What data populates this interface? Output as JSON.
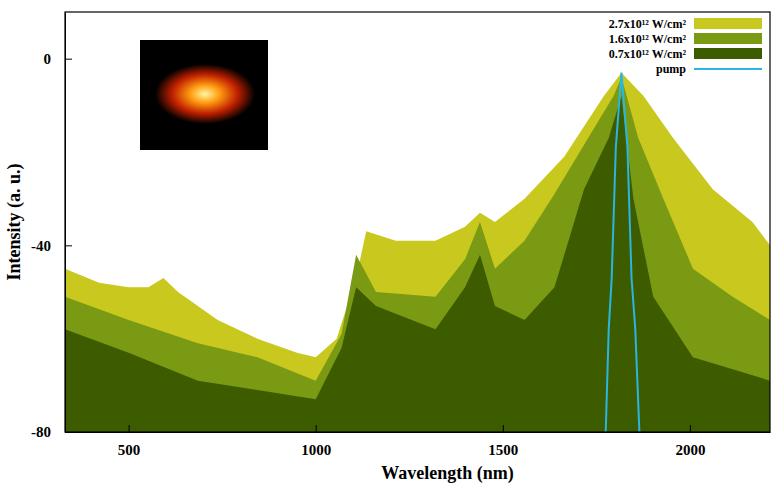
{
  "chart_data": {
    "type": "area",
    "x_label": "Wavelength (nm)",
    "y_label": "Intensity (a. u.)",
    "xlim": [
      330,
      2214
    ],
    "xticks": [
      500,
      1000,
      1500,
      2000
    ],
    "ylim": [
      -80,
      10
    ],
    "yticks": [
      -80,
      -40,
      0
    ],
    "legend": "top-right",
    "series": [
      {
        "name": "2.7x10¹² W/cm²",
        "color": "#c8c81e",
        "type": "area",
        "x": [
          330,
          421,
          500,
          553,
          593,
          632,
          738,
          844,
          950,
          1000,
          1056,
          1108,
          1135,
          1214,
          1320,
          1399,
          1439,
          1479,
          1558,
          1664,
          1770,
          1817,
          1876,
          1955,
          2061,
          2167,
          2214
        ],
        "values": [
          -45,
          -48,
          -49,
          -49,
          -47,
          -50,
          -56,
          -60,
          -63,
          -64,
          -60,
          -47,
          -37,
          -39,
          -39,
          -36,
          -33,
          -35,
          -30,
          -21,
          -8,
          -3,
          -8,
          -17,
          -28,
          -35,
          -40
        ]
      },
      {
        "name": "1.6x10¹² W/cm²",
        "color": "#7a9a14",
        "type": "area",
        "x": [
          330,
          500,
          685,
          844,
          1000,
          1069,
          1108,
          1161,
          1320,
          1399,
          1439,
          1479,
          1558,
          1638,
          1743,
          1796,
          1817,
          1862,
          1929,
          2008,
          2114,
          2214
        ],
        "values": [
          -51,
          -56,
          -61,
          -64,
          -69,
          -59,
          -42,
          -50,
          -51,
          -43,
          -35,
          -45,
          -39,
          -29,
          -15,
          -8,
          -4,
          -17,
          -30,
          -45,
          -51,
          -56
        ]
      },
      {
        "name": "0.7x10¹² W/cm²",
        "color": "#3d5c00",
        "type": "area",
        "x": [
          330,
          500,
          685,
          844,
          1000,
          1069,
          1108,
          1161,
          1320,
          1399,
          1439,
          1479,
          1558,
          1638,
          1717,
          1783,
          1817,
          1849,
          1902,
          2008,
          2214
        ],
        "values": [
          -58,
          -63,
          -69,
          -71,
          -73,
          -62,
          -49,
          -53,
          -58,
          -49,
          -42,
          -53,
          -56,
          -49,
          -28,
          -17,
          -8,
          -30,
          -51,
          -64,
          -69
        ]
      },
      {
        "name": "pump",
        "color": "#29b6e0",
        "type": "line",
        "x": [
          1775,
          1783,
          1791,
          1802,
          1817,
          1833,
          1844,
          1854,
          1865
        ],
        "values": [
          -80,
          -58,
          -47,
          -19,
          -3,
          -19,
          -47,
          -58,
          -80
        ]
      }
    ]
  }
}
